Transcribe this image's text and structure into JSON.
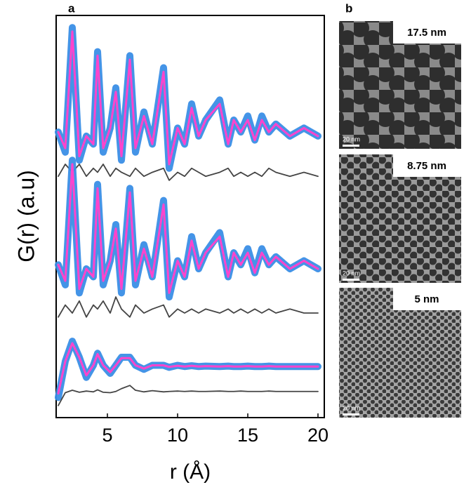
{
  "chart_data": {
    "type": "line",
    "panel_label": "a",
    "xlabel": "r (Å)",
    "ylabel": "G(r) (a.u)",
    "x": [
      1.5,
      2.0,
      2.5,
      3.0,
      3.5,
      4.0,
      4.3,
      4.7,
      5.2,
      5.6,
      6.0,
      6.6,
      7.0,
      7.6,
      8.2,
      9.0,
      9.4,
      10.0,
      10.5,
      11.0,
      11.5,
      12.0,
      13.0,
      13.6,
      14.0,
      14.5,
      15.0,
      15.5,
      16.0,
      16.5,
      17.0,
      18.0,
      19.0,
      20.0
    ],
    "xlim": [
      1.35,
      20.45
    ],
    "xticks": [
      5,
      10,
      15,
      20
    ],
    "ylim": [
      0,
      100
    ],
    "series": [
      {
        "color": "#3a8ee6",
        "style": "data",
        "values": [
          71,
          66,
          97,
          64,
          70,
          68,
          91,
          66,
          72,
          82,
          64,
          90,
          66,
          76,
          68,
          87,
          62,
          72,
          68,
          78,
          70,
          74,
          79,
          68,
          74,
          71,
          75,
          69,
          75,
          71,
          73,
          70,
          72,
          70
        ]
      },
      {
        "color": "#ff44cc",
        "style": "fit",
        "values": [
          71,
          67,
          96,
          65,
          70,
          68,
          90,
          67,
          72,
          81,
          65,
          89,
          67,
          75,
          68,
          86,
          63,
          72,
          68,
          77,
          70,
          74,
          78,
          68,
          74,
          71,
          74,
          69,
          74,
          71,
          73,
          70,
          72,
          70
        ]
      },
      {
        "color": "#444444",
        "style": "diff",
        "values": [
          60,
          63,
          61,
          63,
          60,
          62,
          61,
          63,
          60,
          62,
          61,
          60,
          62,
          60,
          61,
          62,
          59,
          61,
          60,
          62,
          61,
          60,
          61,
          62,
          60,
          61,
          60,
          61,
          60,
          62,
          61,
          60,
          61,
          60
        ]
      },
      {
        "color": "#3a8ee6",
        "style": "data",
        "values": [
          38,
          33,
          64,
          31,
          37,
          35,
          58,
          33,
          39,
          48,
          31,
          57,
          33,
          43,
          35,
          54,
          30,
          39,
          35,
          45,
          37,
          41,
          46,
          35,
          41,
          38,
          42,
          36,
          42,
          38,
          40,
          37,
          39,
          37
        ]
      },
      {
        "color": "#ff44cc",
        "style": "fit",
        "values": [
          38,
          34,
          63,
          32,
          37,
          35,
          57,
          34,
          39,
          47,
          32,
          56,
          34,
          42,
          35,
          53,
          31,
          39,
          35,
          44,
          37,
          41,
          45,
          35,
          41,
          38,
          41,
          36,
          41,
          38,
          40,
          37,
          39,
          37
        ]
      },
      {
        "color": "#444444",
        "style": "diff",
        "values": [
          25,
          28,
          26,
          29,
          25,
          28,
          27,
          29,
          26,
          30,
          27,
          25,
          28,
          26,
          27,
          28,
          25,
          27,
          26,
          27,
          26,
          27,
          26,
          27,
          26,
          27,
          26,
          27,
          26,
          27,
          26,
          27,
          26,
          26
        ]
      },
      {
        "color": "#3a8ee6",
        "style": "data",
        "values": [
          5,
          14,
          19,
          15,
          10,
          13,
          16,
          13,
          11,
          13,
          15,
          15,
          13,
          12,
          13,
          13,
          12.5,
          13,
          12.7,
          12.9,
          12.7,
          12.8,
          12.7,
          12.8,
          12.7,
          12.7,
          12.8,
          12.7,
          12.7,
          12.8,
          12.7,
          12.7,
          12.7,
          12.7
        ]
      },
      {
        "color": "#ff44cc",
        "style": "fit",
        "values": [
          6,
          14,
          18.5,
          15,
          10.5,
          13,
          15.8,
          13,
          11.3,
          13,
          14.8,
          14.8,
          13,
          12.2,
          13,
          13,
          12.6,
          12.9,
          12.7,
          12.9,
          12.7,
          12.8,
          12.7,
          12.8,
          12.7,
          12.7,
          12.8,
          12.7,
          12.7,
          12.8,
          12.7,
          12.7,
          12.7,
          12.7
        ]
      },
      {
        "color": "#444444",
        "style": "diff",
        "values": [
          3,
          6.2,
          6.8,
          6.3,
          6.6,
          6.4,
          6.9,
          6.3,
          6.2,
          6.5,
          7.2,
          8.0,
          6.8,
          6.4,
          6.7,
          6.4,
          6.5,
          6.6,
          6.5,
          6.6,
          6.5,
          6.5,
          6.6,
          6.5,
          6.5,
          6.6,
          6.5,
          6.5,
          6.5,
          6.6,
          6.5,
          6.5,
          6.5,
          6.5
        ]
      }
    ]
  },
  "panel_b": {
    "panel_label": "b",
    "images": [
      {
        "label": "17.5 nm",
        "scale_bar": "20 nm"
      },
      {
        "label": "8.75 nm",
        "scale_bar": "20 nm"
      },
      {
        "label": "5 nm",
        "scale_bar": "20 nm"
      }
    ]
  }
}
